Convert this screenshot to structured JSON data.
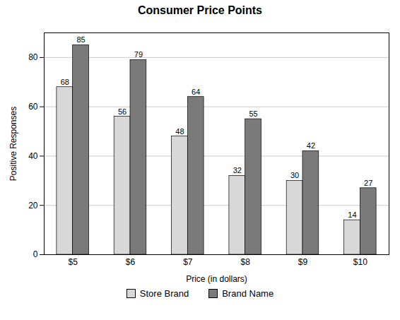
{
  "chart_data": {
    "type": "bar",
    "title": "Consumer Price Points",
    "xlabel": "Price (in dollars)",
    "ylabel": "Positive Responses",
    "categories": [
      "$5",
      "$6",
      "$7",
      "$8",
      "$9",
      "$10"
    ],
    "series": [
      {
        "name": "Store Brand",
        "color": "#d8d8d8",
        "values": [
          68,
          56,
          48,
          32,
          30,
          14
        ]
      },
      {
        "name": "Brand Name",
        "color": "#7a7a7a",
        "values": [
          85,
          79,
          64,
          55,
          42,
          27
        ]
      }
    ],
    "ylim": [
      0,
      90
    ],
    "yticks": [
      0,
      20,
      40,
      60,
      80
    ],
    "grid": true,
    "legend": "bottom",
    "data_labels": true
  }
}
